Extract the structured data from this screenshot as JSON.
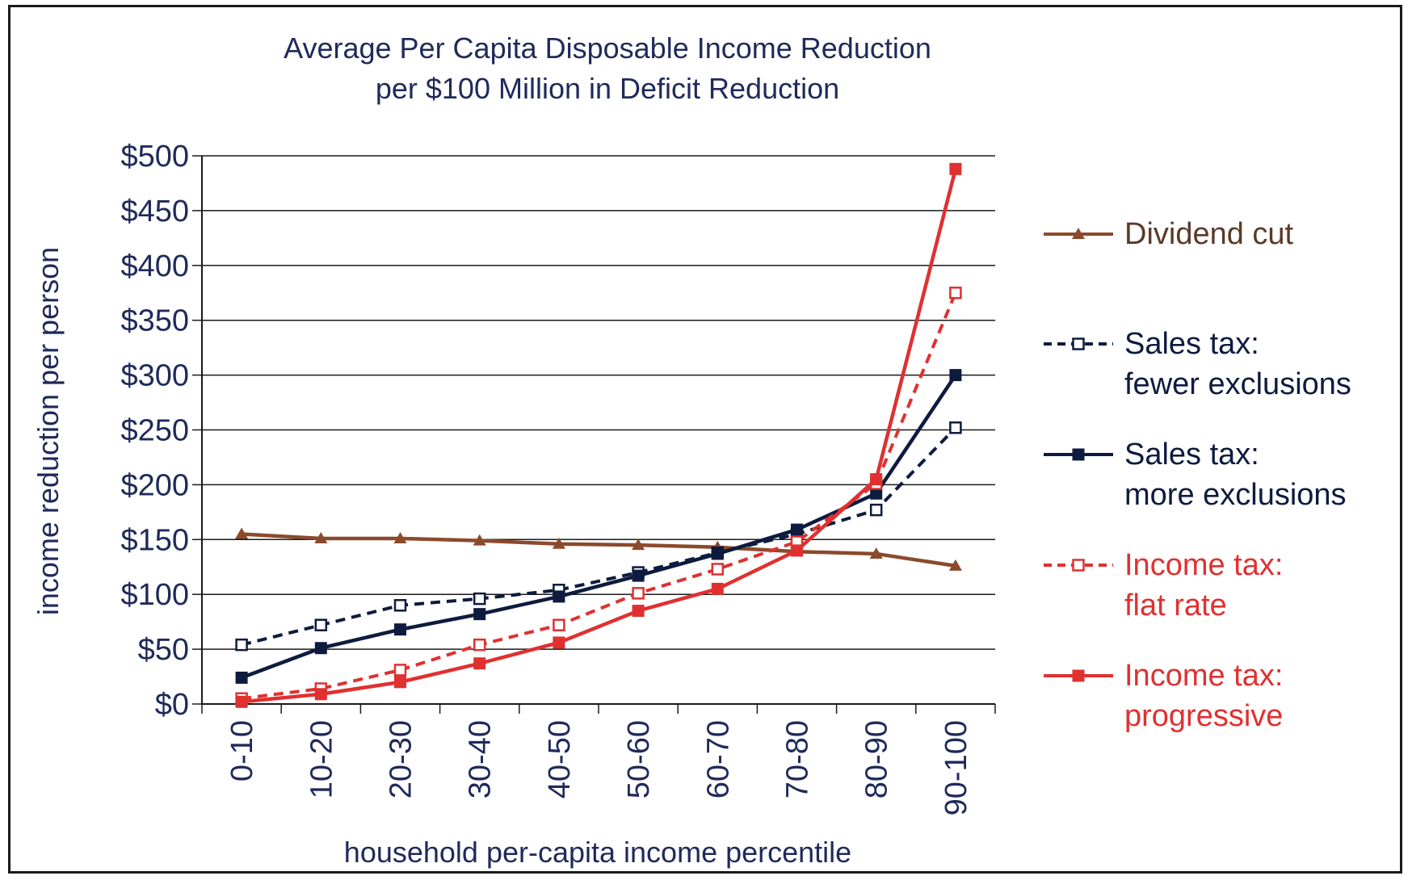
{
  "chart_data": {
    "type": "line",
    "title": [
      "Average Per Capita Disposable Income Reduction",
      "per $100 Million in Deficit Reduction"
    ],
    "xlabel": "household per-capita income percentile",
    "ylabel": "income reduction per person",
    "categories": [
      "0-10",
      "10-20",
      "20-30",
      "30-40",
      "40-50",
      "50-60",
      "60-70",
      "70-80",
      "80-90",
      "90-100"
    ],
    "ylim": [
      0,
      500
    ],
    "yticks": [
      0,
      50,
      100,
      150,
      200,
      250,
      300,
      350,
      400,
      450,
      500
    ],
    "ytick_labels": [
      "$0",
      "$50",
      "$100",
      "$150",
      "$200",
      "$250",
      "$300",
      "$350",
      "$400",
      "$450",
      "$500"
    ],
    "grid": "horizontal",
    "legend_position": "right",
    "series": [
      {
        "name": "Dividend cut",
        "legend_lines": [
          "Dividend cut"
        ],
        "color": "#8b4a2b",
        "dash": false,
        "marker": "triangle",
        "values": [
          155,
          151,
          151,
          149,
          146,
          145,
          143,
          139,
          137,
          126
        ]
      },
      {
        "name": "Sales tax: fewer exclusions",
        "legend_lines": [
          "Sales tax:",
          "fewer exclusions"
        ],
        "color": "#0d1b3e",
        "dash": true,
        "marker": "square-open",
        "values": [
          54,
          72,
          90,
          96,
          104,
          120,
          138,
          155,
          177,
          252
        ]
      },
      {
        "name": "Sales tax: more exclusions",
        "legend_lines": [
          "Sales tax:",
          "more exclusions"
        ],
        "color": "#0d1b3e",
        "dash": false,
        "marker": "square-filled",
        "values": [
          24,
          51,
          68,
          82,
          98,
          117,
          137,
          159,
          192,
          300
        ]
      },
      {
        "name": "Income tax: flat rate",
        "legend_lines": [
          "Income tax:",
          "flat rate"
        ],
        "color": "#e03030",
        "dash": true,
        "marker": "square-open",
        "values": [
          5,
          14,
          31,
          54,
          72,
          101,
          123,
          148,
          201,
          375
        ]
      },
      {
        "name": "Income tax: progressive",
        "legend_lines": [
          "Income tax:",
          "progressive"
        ],
        "color": "#e03030",
        "dash": false,
        "marker": "square-filled",
        "values": [
          2,
          9,
          20,
          37,
          56,
          85,
          105,
          140,
          205,
          488
        ]
      }
    ]
  }
}
